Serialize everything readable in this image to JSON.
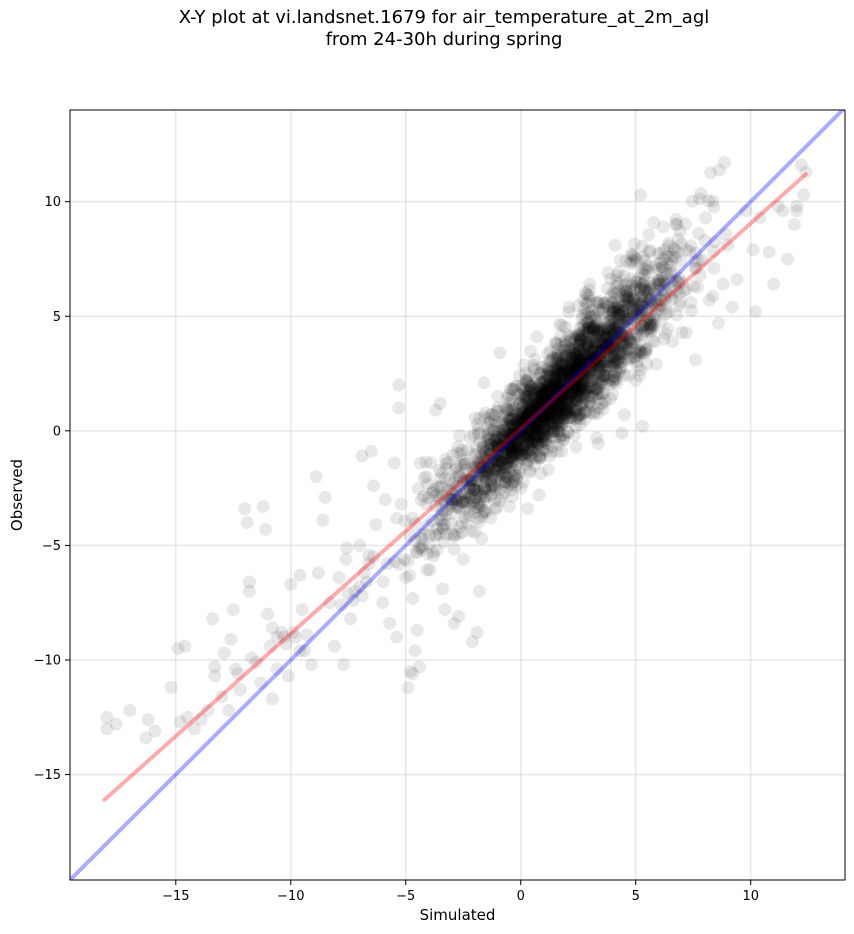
{
  "title_line1": "X-Y plot at vi.landsnet.1679 for air_temperature_at_2m_agl",
  "title_line2": "from 24-30h during spring",
  "chart_data": {
    "type": "scatter",
    "title": "X-Y plot at vi.landsnet.1679 for air_temperature_at_2m_agl from 24-30h during spring",
    "xlabel": "Simulated",
    "ylabel": "Observed",
    "xlim": [
      -19.6,
      14.1
    ],
    "ylim": [
      -19.6,
      14.0
    ],
    "xticks": [
      -15,
      -10,
      -5,
      0,
      5,
      10
    ],
    "yticks": [
      -15,
      -10,
      -5,
      0,
      5,
      10
    ],
    "xticklabels": [
      "−15",
      "−10",
      "−5",
      "0",
      "5",
      "10"
    ],
    "yticklabels": [
      "−15",
      "−10",
      "−5",
      "0",
      "5",
      "10"
    ],
    "grid": true,
    "point_color": "#000000",
    "point_alpha": 0.09,
    "series": [
      {
        "values": [
          [
            -18.0,
            -12.5
          ],
          [
            -18.0,
            -13.0
          ],
          [
            -17.6,
            -12.8
          ],
          [
            -17.0,
            -12.2
          ],
          [
            -16.3,
            -13.4
          ],
          [
            -16.2,
            -12.6
          ],
          [
            -15.9,
            -13.1
          ],
          [
            -15.2,
            -11.2
          ],
          [
            -14.9,
            -9.5
          ],
          [
            -14.6,
            -9.4
          ],
          [
            -14.8,
            -12.7
          ],
          [
            -14.5,
            -12.5
          ],
          [
            -14.2,
            -13.0
          ],
          [
            -13.9,
            -12.6
          ],
          [
            -13.6,
            -12.2
          ],
          [
            -13.4,
            -8.2
          ],
          [
            -13.3,
            -10.3
          ],
          [
            -13.3,
            -10.7
          ],
          [
            -13.0,
            -11.6
          ],
          [
            -12.9,
            -9.7
          ],
          [
            -12.7,
            -12.2
          ],
          [
            -12.6,
            -9.1
          ],
          [
            -12.5,
            -7.8
          ],
          [
            -12.4,
            -10.4
          ],
          [
            -12.3,
            -10.6
          ],
          [
            -12.2,
            -11.3
          ],
          [
            -12.0,
            -3.4
          ],
          [
            -11.9,
            -4.0
          ],
          [
            -11.8,
            -6.6
          ],
          [
            -11.8,
            -7.0
          ],
          [
            -11.7,
            -9.9
          ],
          [
            -11.5,
            -10.1
          ],
          [
            -11.3,
            -11.0
          ],
          [
            -11.2,
            -3.3
          ],
          [
            -11.1,
            -4.3
          ],
          [
            -11.0,
            -8.0
          ],
          [
            -10.8,
            -8.6
          ],
          [
            -10.8,
            -11.7
          ],
          [
            -10.6,
            -10.4
          ],
          [
            -10.3,
            -9.0
          ],
          [
            -10.1,
            -10.7
          ],
          [
            -10.0,
            -6.7
          ],
          [
            -9.9,
            -8.8
          ],
          [
            -9.6,
            -6.3
          ],
          [
            -9.5,
            -7.8
          ],
          [
            -9.4,
            -9.6
          ],
          [
            -9.3,
            -8.9
          ],
          [
            -9.1,
            -10.2
          ],
          [
            -8.9,
            -2.0
          ],
          [
            -8.8,
            -6.2
          ],
          [
            -8.6,
            -3.9
          ],
          [
            -8.5,
            -2.9
          ],
          [
            -8.3,
            -7.5
          ],
          [
            -8.1,
            -9.4
          ],
          [
            -7.9,
            -6.4
          ],
          [
            -7.7,
            -10.2
          ],
          [
            -7.6,
            -5.6
          ],
          [
            -7.4,
            -8.2
          ],
          [
            -7.2,
            -7.0
          ],
          [
            -7.0,
            -5.0
          ],
          [
            -6.9,
            -1.1
          ],
          [
            -6.7,
            -6.6
          ],
          [
            -6.5,
            -0.9
          ],
          [
            -6.4,
            -2.4
          ],
          [
            -6.3,
            -4.1
          ],
          [
            -6.0,
            -7.5
          ],
          [
            -5.9,
            -3.0
          ],
          [
            -5.8,
            -5.8
          ],
          [
            -5.7,
            -8.4
          ],
          [
            -5.5,
            -1.4
          ],
          [
            -5.4,
            -9.0
          ],
          [
            -5.3,
            2.0
          ],
          [
            -5.3,
            1.0
          ],
          [
            -5.2,
            -3.2
          ],
          [
            -5.0,
            -6.4
          ],
          [
            -4.9,
            -11.2
          ],
          [
            -4.8,
            -10.5
          ],
          [
            -4.7,
            -10.6
          ],
          [
            -4.6,
            -9.6
          ],
          [
            -4.5,
            -8.7
          ],
          [
            -4.4,
            -10.3
          ],
          [
            -4.3,
            -4.7
          ],
          [
            -4.1,
            -2.0
          ],
          [
            -3.9,
            -1.4
          ],
          [
            -3.8,
            -5.3
          ],
          [
            -3.7,
            0.9
          ],
          [
            -3.5,
            1.2
          ],
          [
            -3.4,
            -6.9
          ],
          [
            -3.3,
            -7.8
          ],
          [
            -3.2,
            -2.6
          ],
          [
            -3.0,
            -4.5
          ],
          [
            -2.9,
            -8.4
          ],
          [
            -2.7,
            -8.1
          ],
          [
            -2.6,
            -1.0
          ],
          [
            -2.5,
            -5.6
          ],
          [
            -2.3,
            -3.0
          ],
          [
            -2.2,
            -0.3
          ],
          [
            -2.1,
            -9.2
          ],
          [
            -1.9,
            -8.8
          ],
          [
            -1.8,
            -7.0
          ],
          [
            -1.7,
            -4.7
          ],
          [
            -1.6,
            2.1
          ],
          [
            -1.5,
            -2.2
          ],
          [
            -1.4,
            -1.6
          ],
          [
            -1.3,
            -3.8
          ],
          [
            -1.1,
            0.4
          ],
          [
            -1.0,
            1.0
          ],
          [
            -0.9,
            3.4
          ],
          [
            -0.7,
            -1.8
          ],
          [
            -0.6,
            -0.9
          ],
          [
            -0.5,
            -3.3
          ],
          [
            -0.4,
            -1.2
          ],
          [
            -0.3,
            1.8
          ],
          [
            -0.2,
            -2.4
          ],
          [
            -0.1,
            0.2
          ],
          [
            0.1,
            -0.6
          ],
          [
            0.2,
            2.5
          ],
          [
            0.3,
            -3.4
          ],
          [
            0.4,
            0.9
          ],
          [
            0.6,
            -1.5
          ],
          [
            0.7,
            4.1
          ],
          [
            0.8,
            -2.8
          ],
          [
            0.9,
            1.5
          ],
          [
            1.1,
            2.8
          ],
          [
            1.2,
            -1.7
          ],
          [
            1.3,
            0.6
          ],
          [
            1.4,
            3.2
          ],
          [
            1.6,
            -0.9
          ],
          [
            1.7,
            2.0
          ],
          [
            1.8,
            4.6
          ],
          [
            1.9,
            -0.2
          ],
          [
            2.1,
            5.4
          ],
          [
            2.2,
            1.3
          ],
          [
            2.3,
            3.6
          ],
          [
            2.4,
            -0.7
          ],
          [
            2.5,
            2.7
          ],
          [
            2.7,
            4.3
          ],
          [
            2.8,
            0.5
          ],
          [
            3.0,
            6.4
          ],
          [
            3.1,
            1.9
          ],
          [
            3.2,
            5.0
          ],
          [
            3.3,
            -0.3
          ],
          [
            3.5,
            3.8
          ],
          [
            3.6,
            2.4
          ],
          [
            3.8,
            6.9
          ],
          [
            3.9,
            1.4
          ],
          [
            4.0,
            5.6
          ],
          [
            4.1,
            8.1
          ],
          [
            4.2,
            3.1
          ],
          [
            4.4,
            -0.1
          ],
          [
            4.5,
            0.7
          ],
          [
            4.6,
            6.1
          ],
          [
            4.7,
            4.0
          ],
          [
            4.8,
            7.7
          ],
          [
            5.0,
            2.2
          ],
          [
            5.1,
            5.3
          ],
          [
            5.2,
            10.3
          ],
          [
            5.3,
            0.2
          ],
          [
            5.4,
            6.8
          ],
          [
            5.5,
            3.6
          ],
          [
            5.6,
            7.8
          ],
          [
            5.8,
            4.6
          ],
          [
            5.9,
            2.9
          ],
          [
            6.0,
            6.4
          ],
          [
            6.2,
            8.9
          ],
          [
            6.3,
            5.1
          ],
          [
            6.4,
            7.3
          ],
          [
            6.6,
            3.9
          ],
          [
            6.8,
            9.0
          ],
          [
            6.9,
            6.0
          ],
          [
            7.0,
            4.3
          ],
          [
            7.2,
            7.9
          ],
          [
            7.4,
            5.6
          ],
          [
            7.6,
            3.1
          ],
          [
            7.8,
            6.8
          ],
          [
            8.0,
            8.3
          ],
          [
            8.2,
            5.7
          ],
          [
            8.4,
            7.1
          ],
          [
            8.6,
            4.7
          ],
          [
            8.8,
            6.4
          ],
          [
            9.0,
            8.1
          ],
          [
            9.2,
            5.4
          ],
          [
            9.4,
            6.6
          ],
          [
            9.8,
            9.6
          ],
          [
            10.1,
            7.9
          ],
          [
            10.2,
            5.2
          ],
          [
            10.4,
            9.3
          ],
          [
            10.8,
            7.8
          ],
          [
            11.0,
            6.4
          ],
          [
            11.2,
            9.8
          ],
          [
            11.6,
            7.5
          ],
          [
            11.9,
            9.0
          ],
          [
            12.0,
            9.8
          ],
          [
            12.2,
            11.6
          ],
          [
            12.4,
            11.3
          ],
          [
            12.3,
            10.3
          ],
          [
            12.0,
            9.6
          ],
          [
            11.4,
            9.6
          ],
          [
            -7.3,
            -7.4
          ],
          [
            -7.0,
            -6.8
          ],
          [
            -6.8,
            -6.2
          ],
          [
            -7.5,
            -7.1
          ],
          [
            -6.6,
            -5.8
          ],
          [
            -7.8,
            -7.6
          ],
          [
            -6.4,
            -5.5
          ],
          [
            -6.9,
            -7.2
          ],
          [
            -10.6,
            -9.0
          ],
          [
            -10.2,
            -9.3
          ],
          [
            -9.8,
            -9.0
          ],
          [
            -10.4,
            -8.8
          ],
          [
            -10.9,
            -9.4
          ],
          [
            -9.6,
            -9.6
          ],
          [
            -2.2,
            -2.2
          ],
          [
            -1.8,
            -1.6
          ],
          [
            -2.6,
            -2.8
          ],
          [
            -1.3,
            -1.0
          ]
        ],
        "trend_cloud": {
          "n": 2600,
          "slope": 1.0,
          "intercept": 0.0,
          "noise": 1.3,
          "x_center": 1.6,
          "x_spread": 2.5
        }
      }
    ],
    "lines": [
      {
        "name": "1:1 reference",
        "color": "#0000ff",
        "alpha": 0.33,
        "x": [
          -19.6,
          14.1
        ],
        "y": [
          -19.6,
          14.1
        ]
      },
      {
        "name": "linear fit",
        "color": "#ff0000",
        "alpha": 0.33,
        "x": [
          -18.1,
          12.4
        ],
        "y": [
          -16.1,
          11.2
        ]
      }
    ]
  }
}
